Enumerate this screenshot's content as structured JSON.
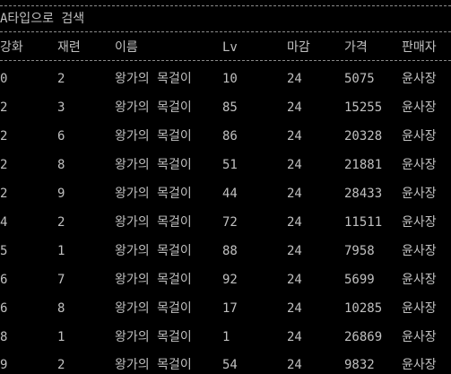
{
  "console": {
    "title": "A타입으로 검색",
    "colors": {
      "background": "#000000",
      "text": "#c0c0c0"
    },
    "columns": [
      "강화",
      "재련",
      "이름",
      "Lv",
      "마감",
      "가격",
      "판매자"
    ],
    "rows": [
      [
        "0",
        "2",
        "왕가의 목걸이",
        "10",
        "24",
        "5075",
        "윤사장"
      ],
      [
        "2",
        "3",
        "왕가의 목걸이",
        "85",
        "24",
        "15255",
        "윤사장"
      ],
      [
        "2",
        "6",
        "왕가의 목걸이",
        "86",
        "24",
        "20328",
        "윤사장"
      ],
      [
        "2",
        "8",
        "왕가의 목걸이",
        "51",
        "24",
        "21881",
        "윤사장"
      ],
      [
        "2",
        "9",
        "왕가의 목걸이",
        "44",
        "24",
        "28433",
        "윤사장"
      ],
      [
        "4",
        "2",
        "왕가의 목걸이",
        "72",
        "24",
        "11511",
        "윤사장"
      ],
      [
        "5",
        "1",
        "왕가의 목걸이",
        "88",
        "24",
        "7958",
        "윤사장"
      ],
      [
        "6",
        "7",
        "왕가의 목걸이",
        "92",
        "24",
        "5699",
        "윤사장"
      ],
      [
        "6",
        "8",
        "왕가의 목걸이",
        "17",
        "24",
        "10285",
        "윤사장"
      ],
      [
        "8",
        "1",
        "왕가의 목걸이",
        "1",
        "24",
        "26869",
        "윤사장"
      ],
      [
        "9",
        "2",
        "왕가의 목걸이",
        "54",
        "24",
        "9832",
        "윤사장"
      ]
    ]
  }
}
